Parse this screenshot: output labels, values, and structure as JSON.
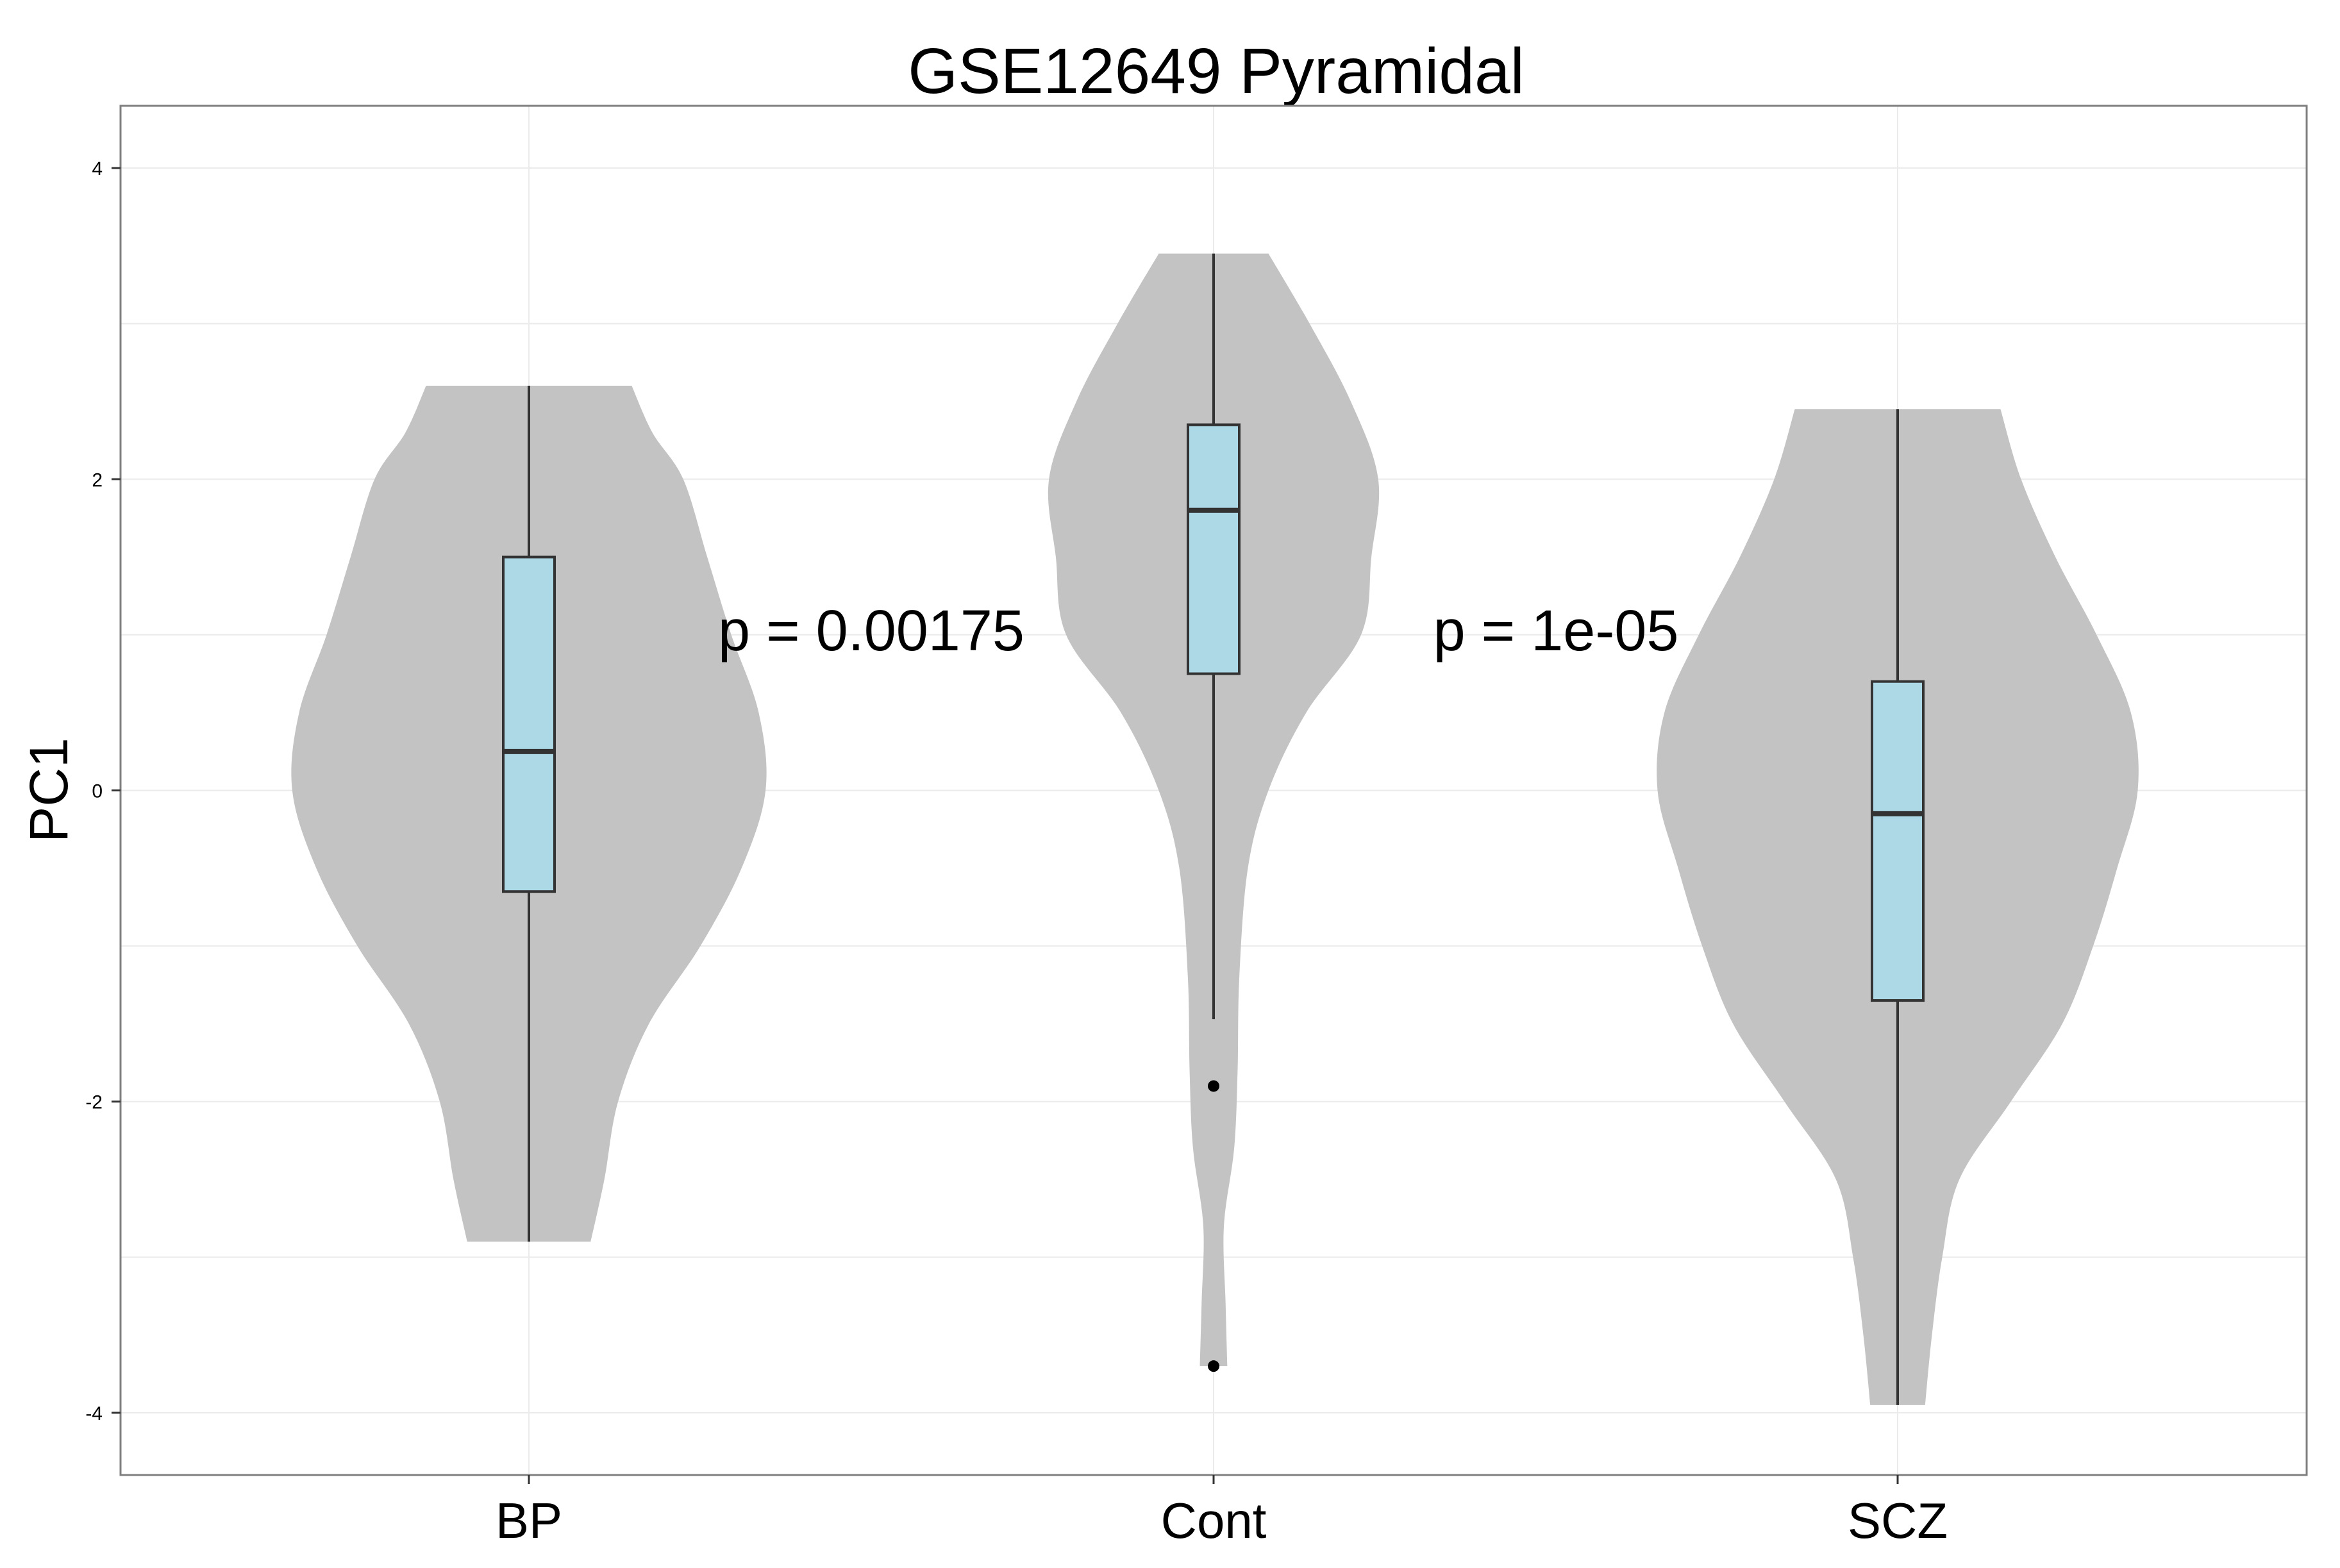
{
  "chart_data": {
    "type": "violin",
    "title": "GSE12649 Pyramidal",
    "xlabel": "",
    "ylabel": "PC1",
    "ylim": [
      -4.4,
      4.4
    ],
    "yticks": [
      -4,
      -2,
      0,
      2,
      4
    ],
    "grid": true,
    "colors": {
      "violin": "#c3c3c3",
      "box": "#add8e6",
      "line": "#333333",
      "grid": "#ebebeb",
      "border": "#7f7f7f"
    },
    "categories": [
      "BP",
      "Cont",
      "SCZ"
    ],
    "groups": [
      {
        "name": "BP",
        "min": -2.9,
        "q1": -0.65,
        "median": 0.25,
        "q3": 1.5,
        "max": 2.6,
        "whisker_low": -2.9,
        "whisker_high": 2.6,
        "outliers": [],
        "density": [
          [
            -2.9,
            0.18
          ],
          [
            -2.5,
            0.22
          ],
          [
            -2.0,
            0.26
          ],
          [
            -1.5,
            0.35
          ],
          [
            -1.0,
            0.5
          ],
          [
            -0.5,
            0.62
          ],
          [
            0.0,
            0.69
          ],
          [
            0.5,
            0.67
          ],
          [
            1.0,
            0.59
          ],
          [
            1.5,
            0.52
          ],
          [
            2.0,
            0.45
          ],
          [
            2.3,
            0.36
          ],
          [
            2.6,
            0.3
          ]
        ]
      },
      {
        "name": "Cont",
        "min": -3.7,
        "q1": 0.75,
        "median": 1.8,
        "q3": 2.35,
        "max": 3.45,
        "whisker_low": -1.47,
        "whisker_high": 3.45,
        "outliers": [
          -1.9,
          -3.7
        ],
        "density": [
          [
            -3.7,
            0.04
          ],
          [
            -3.3,
            0.035
          ],
          [
            -2.8,
            0.03
          ],
          [
            -2.3,
            0.06
          ],
          [
            -1.8,
            0.07
          ],
          [
            -1.2,
            0.075
          ],
          [
            -0.5,
            0.1
          ],
          [
            0.0,
            0.16
          ],
          [
            0.5,
            0.27
          ],
          [
            1.0,
            0.43
          ],
          [
            1.5,
            0.46
          ],
          [
            2.0,
            0.48
          ],
          [
            2.5,
            0.4
          ],
          [
            3.0,
            0.28
          ],
          [
            3.45,
            0.16
          ]
        ]
      },
      {
        "name": "SCZ",
        "min": -3.95,
        "q1": -1.35,
        "median": -0.15,
        "q3": 0.7,
        "max": 2.45,
        "whisker_low": -3.95,
        "whisker_high": 2.45,
        "outliers": [],
        "density": [
          [
            -3.95,
            0.08
          ],
          [
            -3.5,
            0.1
          ],
          [
            -3.0,
            0.13
          ],
          [
            -2.5,
            0.18
          ],
          [
            -2.0,
            0.33
          ],
          [
            -1.5,
            0.48
          ],
          [
            -1.0,
            0.57
          ],
          [
            -0.5,
            0.64
          ],
          [
            0.0,
            0.7
          ],
          [
            0.5,
            0.68
          ],
          [
            1.0,
            0.58
          ],
          [
            1.5,
            0.46
          ],
          [
            2.0,
            0.36
          ],
          [
            2.45,
            0.3
          ]
        ]
      }
    ],
    "annotations": [
      {
        "text": "p = 0.00175",
        "x": 0.5,
        "y": 0.9
      },
      {
        "text": "p = 1e-05",
        "x": 1.5,
        "y": 0.9
      }
    ]
  }
}
